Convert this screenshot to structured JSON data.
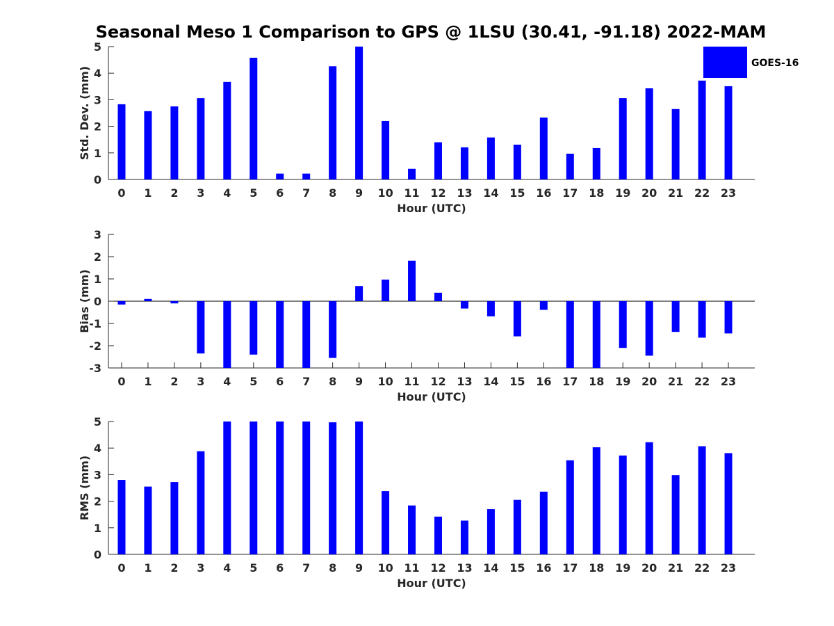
{
  "title": "Seasonal Meso 1 Comparison to GPS @ 1LSU (30.41, -91.18) 2022-MAM",
  "bar_color": "#0000ff",
  "legend": {
    "label": "GOES-16",
    "placement": "top-right"
  },
  "chart_data": [
    {
      "type": "bar",
      "name": "std-dev",
      "categories": [
        "0",
        "1",
        "2",
        "3",
        "4",
        "5",
        "6",
        "7",
        "8",
        "9",
        "10",
        "11",
        "12",
        "13",
        "14",
        "15",
        "16",
        "17",
        "18",
        "19",
        "20",
        "21",
        "22",
        "23"
      ],
      "values": [
        2.83,
        2.57,
        2.75,
        3.06,
        3.67,
        4.58,
        0.22,
        0.22,
        4.26,
        5.0,
        2.2,
        0.4,
        1.4,
        1.21,
        1.58,
        1.31,
        2.33,
        0.97,
        1.18,
        3.06,
        3.43,
        2.65,
        3.72,
        3.51
      ],
      "xlabel": "Hour (UTC)",
      "ylabel": "Std. Dev. (mm)",
      "ylim": [
        0,
        5
      ],
      "yticks": [
        "0",
        "1",
        "2",
        "3",
        "4",
        "5"
      ],
      "series": [
        {
          "name": "GOES-16"
        }
      ]
    },
    {
      "type": "bar",
      "name": "bias",
      "categories": [
        "0",
        "1",
        "2",
        "3",
        "4",
        "5",
        "6",
        "7",
        "8",
        "9",
        "10",
        "11",
        "12",
        "13",
        "14",
        "15",
        "16",
        "17",
        "18",
        "19",
        "20",
        "21",
        "22",
        "23"
      ],
      "values": [
        -0.15,
        0.1,
        -0.1,
        -2.35,
        -3.0,
        -2.4,
        -3.0,
        -3.0,
        -2.55,
        0.68,
        0.97,
        1.82,
        0.38,
        -0.33,
        -0.68,
        -1.58,
        -0.39,
        -3.0,
        -3.0,
        -2.1,
        -2.45,
        -1.38,
        -1.64,
        -1.45
      ],
      "xlabel": "Hour (UTC)",
      "ylabel": "Bias (mm)",
      "ylim": [
        -3,
        3
      ],
      "yticks": [
        "-3",
        "-2",
        "-1",
        "0",
        "1",
        "2",
        "3"
      ]
    },
    {
      "type": "bar",
      "name": "rms",
      "categories": [
        "0",
        "1",
        "2",
        "3",
        "4",
        "5",
        "6",
        "7",
        "8",
        "9",
        "10",
        "11",
        "12",
        "13",
        "14",
        "15",
        "16",
        "17",
        "18",
        "19",
        "20",
        "21",
        "22",
        "23"
      ],
      "values": [
        2.8,
        2.55,
        2.72,
        3.88,
        5.0,
        5.0,
        5.0,
        5.0,
        4.97,
        5.0,
        2.38,
        1.84,
        1.42,
        1.27,
        1.7,
        2.05,
        2.36,
        3.54,
        4.03,
        3.72,
        4.22,
        2.98,
        4.07,
        3.81
      ],
      "xlabel": "Hour (UTC)",
      "ylabel": "RMS (mm)",
      "ylim": [
        0,
        5
      ],
      "yticks": [
        "0",
        "1",
        "2",
        "3",
        "4",
        "5"
      ]
    }
  ]
}
